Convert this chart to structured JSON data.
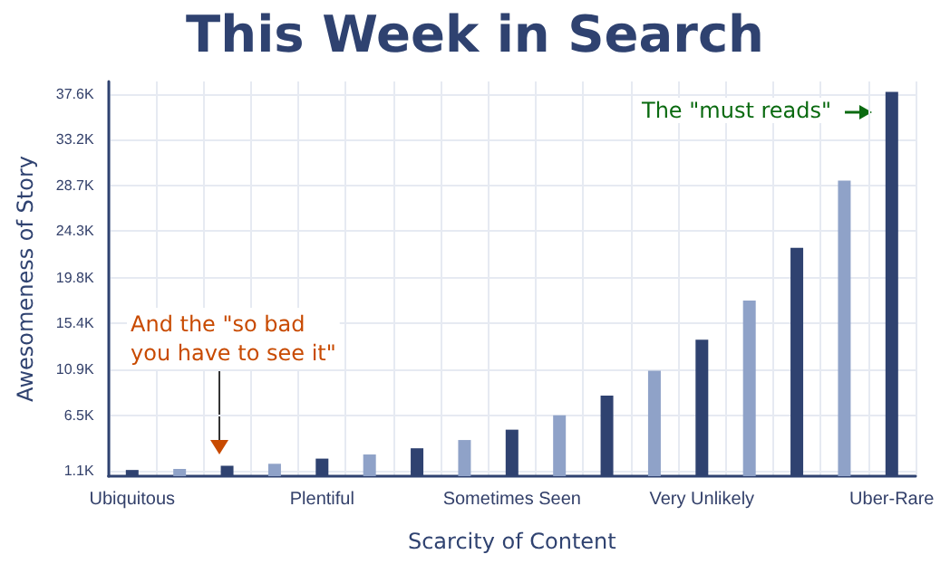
{
  "chart_data": {
    "type": "bar",
    "title": "This Week in Search",
    "xlabel": "Scarcity of Content",
    "ylabel": "Awesomeness of Story",
    "categories": [
      "Ubiquitous",
      null,
      null,
      null,
      "Plentiful",
      null,
      null,
      null,
      "Sometimes Seen",
      null,
      null,
      null,
      "Very Unlikely",
      null,
      null,
      null,
      "Uber-Rare"
    ],
    "values": [
      1200,
      1300,
      1600,
      1800,
      2300,
      2700,
      3300,
      4100,
      5100,
      6500,
      8400,
      10800,
      13800,
      17600,
      22700,
      29200,
      37800
    ],
    "colors": [
      "#2f4270",
      "#8fa2c8",
      "#2f4270",
      "#8fa2c8",
      "#2f4270",
      "#8fa2c8",
      "#2f4270",
      "#8fa2c8",
      "#2f4270",
      "#8fa2c8",
      "#2f4270",
      "#8fa2c8",
      "#2f4270",
      "#8fa2c8",
      "#2f4270",
      "#8fa2c8",
      "#2f4270"
    ],
    "ylim": [
      600,
      38800
    ],
    "yticks": [
      {
        "value": 1100,
        "label": "1.1K"
      },
      {
        "value": 6500,
        "label": "6.5K"
      },
      {
        "value": 10900,
        "label": "10.9K"
      },
      {
        "value": 15400,
        "label": "15.4K"
      },
      {
        "value": 19800,
        "label": "19.8K"
      },
      {
        "value": 24300,
        "label": "24.3K"
      },
      {
        "value": 28700,
        "label": "28.7K"
      },
      {
        "value": 33200,
        "label": "33.2K"
      },
      {
        "value": 37600,
        "label": "37.6K"
      }
    ],
    "grid": true,
    "annotations": [
      "And the \"so bad\nyou have to see it\"",
      "The \"must reads\""
    ]
  }
}
